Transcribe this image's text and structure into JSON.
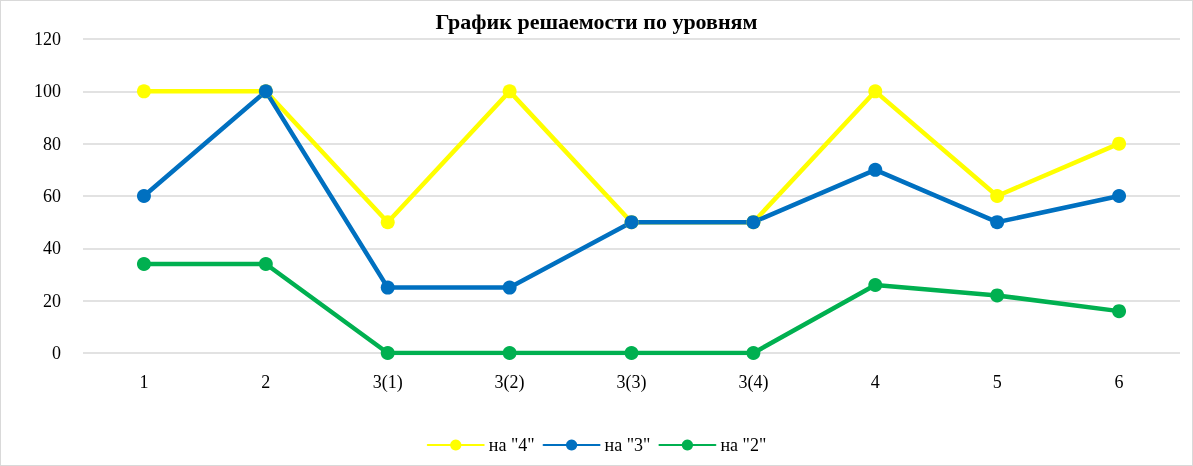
{
  "chart_data": {
    "type": "line",
    "title": "График решаемости по уровням",
    "categories": [
      "1",
      "2",
      "3(1)",
      "3(2)",
      "3(3)",
      "3(4)",
      "4",
      "5",
      "6"
    ],
    "series": [
      {
        "name": "на \"4\"",
        "color": "#ffff00",
        "values": [
          100,
          100,
          50,
          100,
          50,
          50,
          100,
          60,
          80
        ]
      },
      {
        "name": "на \"3\"",
        "color": "#0070c0",
        "values": [
          60,
          100,
          25,
          25,
          50,
          50,
          70,
          50,
          60
        ]
      },
      {
        "name": "на \"2\"",
        "color": "#00b050",
        "values": [
          34,
          34,
          0,
          0,
          0,
          0,
          26,
          22,
          16
        ]
      }
    ],
    "ylim": [
      0,
      120
    ],
    "yticks": [
      0,
      20,
      40,
      60,
      80,
      100,
      120
    ],
    "grid": "y",
    "legend": "bottom",
    "marker": "circle",
    "line_style": "solid"
  }
}
